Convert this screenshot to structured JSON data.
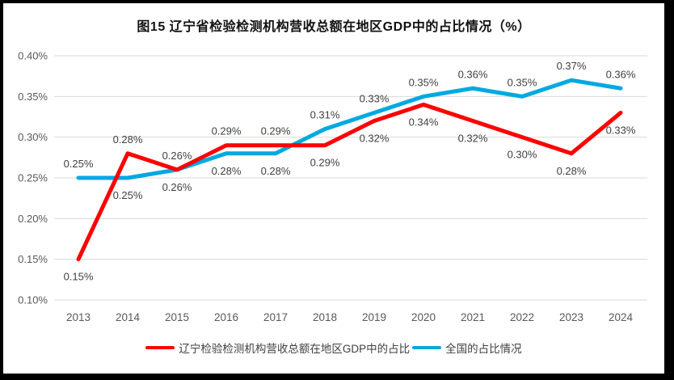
{
  "window": {
    "background": "#ffffff",
    "frame_color": "#000000"
  },
  "chart_data": {
    "type": "line",
    "title": "图15 辽宁省检验检测机构营收总额在地区GDP中的占比情况（%）",
    "categories": [
      "2013",
      "2014",
      "2015",
      "2016",
      "2017",
      "2018",
      "2019",
      "2020",
      "2021",
      "2022",
      "2023",
      "2024"
    ],
    "series": [
      {
        "name": "辽宁检验检测机构营收总额在地区GDP中的占比",
        "color": "#FE0000",
        "values": [
          0.15,
          0.28,
          0.26,
          0.29,
          0.29,
          0.29,
          0.32,
          0.34,
          0.32,
          0.3,
          0.28,
          0.33
        ],
        "labels": [
          "0.15%",
          "0.28%",
          "0.26%",
          "0.29%",
          "0.29%",
          "0.29%",
          "0.32%",
          "0.34%",
          "0.32%",
          "0.30%",
          "0.28%",
          "0.33%"
        ],
        "label_side": [
          "below",
          "above",
          "above",
          "above",
          "above",
          "below",
          "below",
          "below",
          "below",
          "below",
          "below",
          "below"
        ]
      },
      {
        "name": "全国的占比情况",
        "color": "#00A9E0",
        "values": [
          0.25,
          0.25,
          0.26,
          0.28,
          0.28,
          0.31,
          0.33,
          0.35,
          0.36,
          0.35,
          0.37,
          0.36
        ],
        "labels": [
          "0.25%",
          "0.25%",
          "0.26%",
          "0.28%",
          "0.28%",
          "0.31%",
          "0.33%",
          "0.35%",
          "0.36%",
          "0.35%",
          "0.37%",
          "0.36%"
        ],
        "label_side": [
          "above",
          "below",
          "below",
          "below",
          "below",
          "above",
          "above",
          "above",
          "above",
          "above",
          "above",
          "above"
        ]
      }
    ],
    "y_axis": {
      "min": 0.1,
      "max": 0.4,
      "step": 0.05,
      "tick_labels": [
        "0.40%",
        "0.35%",
        "0.30%",
        "0.25%",
        "0.20%",
        "0.15%",
        "0.10%"
      ]
    },
    "legend_position": "bottom",
    "grid": "horizontal",
    "colors": {
      "gridline": "#D9D9D9",
      "axis_text": "#595959",
      "data_label_text": "#3F3F3F",
      "title_text": "#111111"
    }
  }
}
